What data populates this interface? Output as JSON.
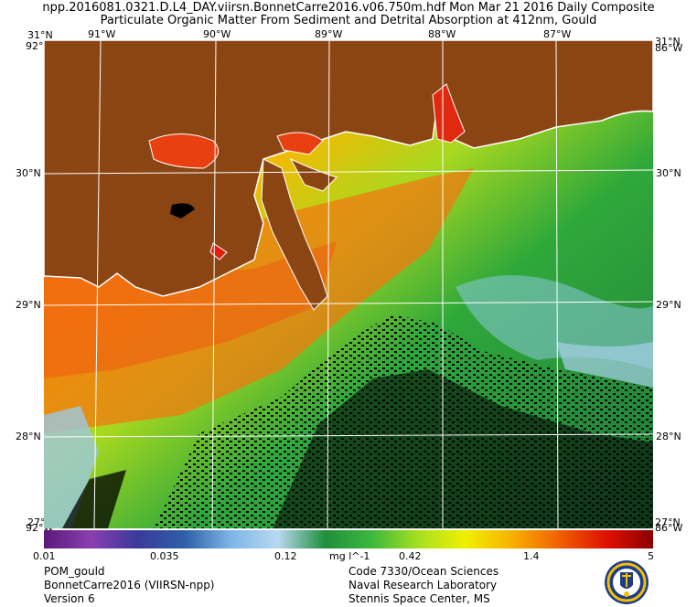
{
  "header": {
    "line1": "npp.2016081.0321.D.L4_DAY.viirsn.BonnetCarre2016.v06.750m.hdf   Mon Mar 21 2016 Daily Composite",
    "line2": "Particulate Organic Matter From Sediment and Detrital Absorption at 412nm, Gould"
  },
  "map": {
    "lon_labels": [
      "91°W",
      "90°W",
      "89°W",
      "88°W",
      "87°W"
    ],
    "lat_labels": [
      "30°N",
      "29°N",
      "28°N"
    ],
    "corner_top_left": "31°N",
    "corner_top_left_lon": "92°W",
    "corner_bottom_left": "27°N",
    "corner_bottom_left_lon": "92°W",
    "corner_top_right": "31°N",
    "corner_top_right_lon": "86°W",
    "corner_bottom_right": "27°N",
    "corner_bottom_right_lon": "86°W",
    "colors": {
      "land": "#8b4513",
      "coast": "#ffffff",
      "grid": "#ffffff",
      "nodata": "#000000"
    }
  },
  "colorbar": {
    "ticks": [
      "0.01",
      "0.035",
      "0.12",
      "0.42",
      "1.4",
      "5"
    ],
    "units": "mg l^-1",
    "stops": [
      "#5a1a7a",
      "#8a3fb0",
      "#3a3a9a",
      "#2e5fa8",
      "#7fb6e8",
      "#b8d8f0",
      "#1e8f3c",
      "#3cb83c",
      "#a8e020",
      "#f0f000",
      "#f8b000",
      "#f06000",
      "#e01000",
      "#8b0000"
    ]
  },
  "footer": {
    "left": [
      "POM_gould",
      "BonnetCarre2016 (VIIRSN-npp)",
      "Version 6"
    ],
    "right": [
      "Code 7330/Ocean Sciences",
      "Naval Research Laboratory",
      "Stennis Space Center, MS"
    ],
    "logo": "nrl-seal-icon"
  }
}
